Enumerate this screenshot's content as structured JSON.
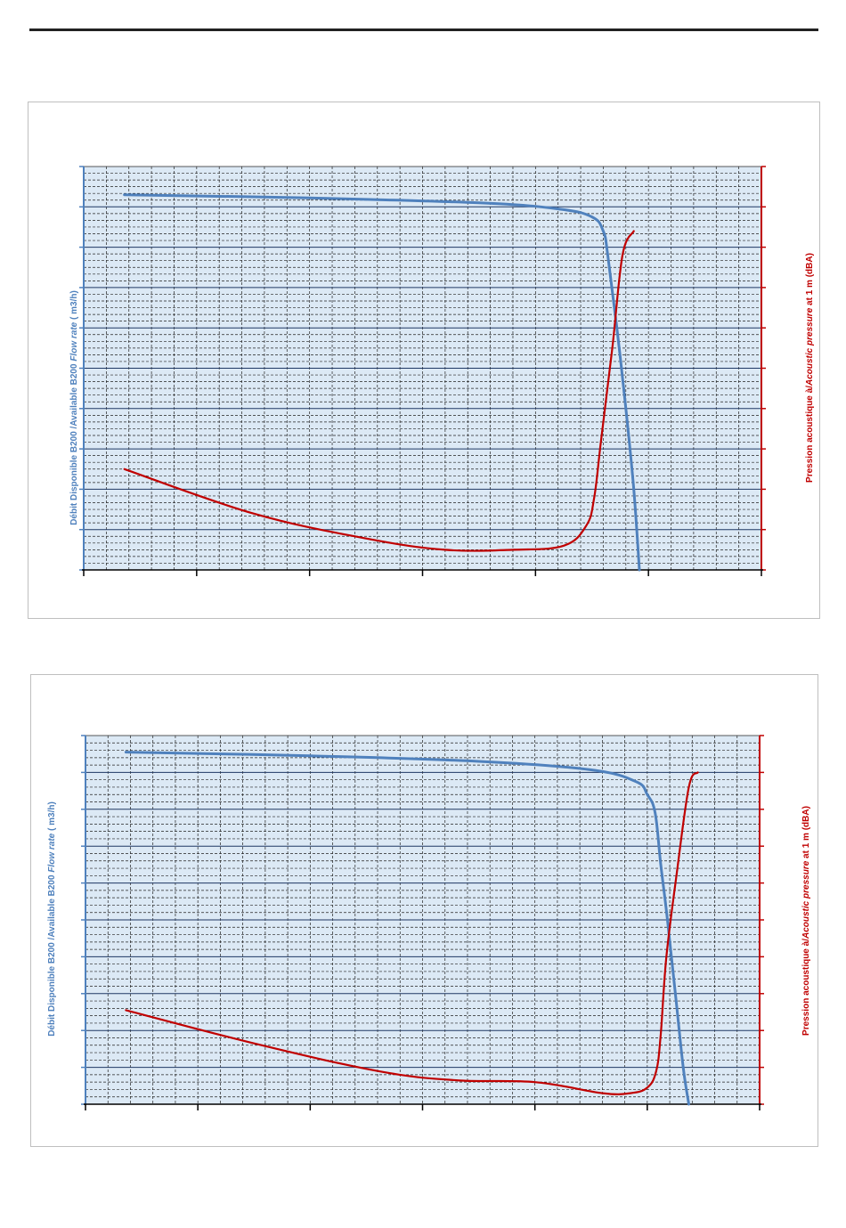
{
  "colors": {
    "flow": "#4f81bd",
    "noise": "#c00000",
    "plot_bg": "#dce9f5",
    "grid_major": "#1f3864",
    "grid_minor": "#222222"
  },
  "charts": [
    {
      "left_axis_label": {
        "prefix": "Débit Disponible  B200 /Available B200 ",
        "italic": "Flow rate",
        "suffix": " ( m3/h)"
      },
      "right_axis_label": {
        "prefix": "Pression acoustique à/",
        "italic": "Acoustic pressure",
        "suffix": "  at 1 m (dBA)"
      }
    },
    {
      "left_axis_label": {
        "prefix": "Débit Disponible  B200 /Available B200 ",
        "italic": "Flow rate",
        "suffix": " ( m3/h)"
      },
      "right_axis_label": {
        "prefix": "Pression acoustique à/",
        "italic": "Acoustic pressure",
        "suffix": "  at 1 m (dBA)"
      }
    }
  ],
  "chart_data": [
    {
      "type": "line",
      "xlim": [
        0,
        6
      ],
      "y_left_lim": [
        0,
        10
      ],
      "y_right_lim": [
        0,
        10
      ],
      "grid": true,
      "series": [
        {
          "axis": "left",
          "points": [
            [
              0.36,
              9.3
            ],
            [
              2.0,
              9.22
            ],
            [
              3.5,
              9.1
            ],
            [
              4.2,
              8.95
            ],
            [
              4.5,
              8.75
            ],
            [
              4.6,
              8.4
            ],
            [
              4.64,
              7.8
            ],
            [
              4.72,
              6.0
            ],
            [
              4.8,
              4.0
            ],
            [
              4.87,
              2.0
            ],
            [
              4.92,
              0.0
            ]
          ]
        },
        {
          "axis": "right",
          "points": [
            [
              0.36,
              2.5
            ],
            [
              1.5,
              1.4
            ],
            [
              2.5,
              0.78
            ],
            [
              3.2,
              0.5
            ],
            [
              3.8,
              0.5
            ],
            [
              4.25,
              0.6
            ],
            [
              4.45,
              1.1
            ],
            [
              4.52,
              1.8
            ],
            [
              4.58,
              3.2
            ],
            [
              4.68,
              5.5
            ],
            [
              4.77,
              7.8
            ],
            [
              4.87,
              8.4
            ]
          ]
        }
      ]
    },
    {
      "type": "line",
      "xlim": [
        0,
        6
      ],
      "y_left_lim": [
        0,
        10
      ],
      "y_right_lim": [
        0,
        10
      ],
      "grid": true,
      "series": [
        {
          "axis": "left",
          "points": [
            [
              0.36,
              9.55
            ],
            [
              2.0,
              9.45
            ],
            [
              3.5,
              9.3
            ],
            [
              4.5,
              9.07
            ],
            [
              4.9,
              8.75
            ],
            [
              5.0,
              8.4
            ],
            [
              5.07,
              7.9
            ],
            [
              5.12,
              6.5
            ],
            [
              5.18,
              5.0
            ],
            [
              5.25,
              3.0
            ],
            [
              5.32,
              1.0
            ],
            [
              5.37,
              0.0
            ]
          ]
        },
        {
          "axis": "right",
          "points": [
            [
              0.36,
              2.55
            ],
            [
              1.5,
              1.65
            ],
            [
              2.6,
              0.9
            ],
            [
              3.3,
              0.65
            ],
            [
              4.0,
              0.6
            ],
            [
              4.6,
              0.3
            ],
            [
              4.85,
              0.3
            ],
            [
              5.0,
              0.45
            ],
            [
              5.08,
              0.9
            ],
            [
              5.12,
              1.9
            ],
            [
              5.17,
              4.0
            ],
            [
              5.26,
              6.2
            ],
            [
              5.37,
              8.6
            ],
            [
              5.45,
              9.0
            ]
          ]
        }
      ]
    }
  ]
}
